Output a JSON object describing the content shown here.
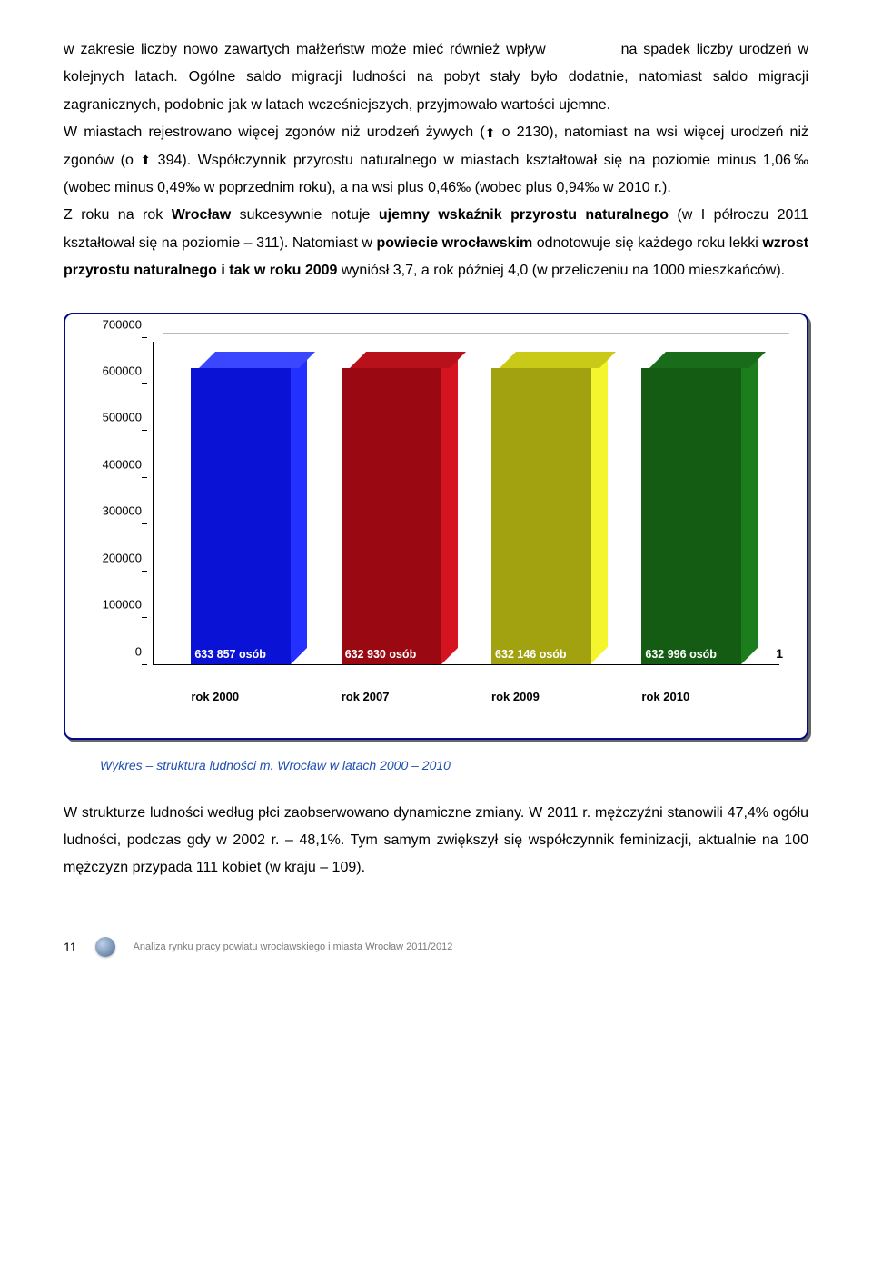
{
  "body_html": "w zakresie liczby nowo zawartych  małżeństw  może  mieć  również wpływ&nbsp;&nbsp;&nbsp;&nbsp;&nbsp;&nbsp;&nbsp;&nbsp;&nbsp;&nbsp;&nbsp;&nbsp;na spadek liczby urodzeń w kolejnych latach. Ogólne saldo migracji ludności na pobyt stały było dodatnie, natomiast saldo migracji zagranicznych, podobnie jak w latach wcześniejszych, przyjmowało wartości ujemne.<br>W miastach rejestrowano więcej zgonów niż urodzeń żywych (<span class='arrow-icon'>⬆</span> o 2130), natomiast na wsi więcej urodzeń niż zgonów (o <span class='arrow-icon'>⬆</span> 394). Współczynnik przyrostu naturalnego w miastach kształtował się na poziomie minus 1,06‰ (wobec minus 0,49‰ w poprzednim roku), a na wsi plus 0,46‰ (wobec plus 0,94‰ w 2010 r.).<br>Z roku na rok <b>Wrocław</b> sukcesywnie notuje <b>ujemny wskaźnik przyrostu naturalnego</b> (w I półroczu 2011 kształtował się na poziomie – 311). Natomiast w <b>powiecie wrocławskim</b> odnotowuje się każdego roku lekki <b>wzrost przyrostu naturalnego i tak w roku 2009</b> wyniósł  3,7, a rok później 4,0 (w przeliczeniu na 1000 mieszkańców).",
  "chart": {
    "type": "bar",
    "ylim": [
      0,
      700000
    ],
    "yticks": [
      0,
      100000,
      200000,
      300000,
      400000,
      500000,
      600000,
      700000
    ],
    "background": "#ffffff",
    "bars": [
      {
        "x_label": "rok 2000",
        "value": 633857,
        "value_label": "633 857 osób",
        "front": "#0a12d6",
        "side": "#2430ff",
        "top": "#3a47ff",
        "left_pct": 6
      },
      {
        "x_label": "rok 2007",
        "value": 632930,
        "value_label": "632 930 osób",
        "front": "#9a0812",
        "side": "#d61320",
        "top": "#b8111c",
        "left_pct": 30
      },
      {
        "x_label": "rok 2009",
        "value": 632146,
        "value_label": "632 146 osób",
        "front": "#a2a210",
        "side": "#f5f52e",
        "top": "#c9c918",
        "left_pct": 54
      },
      {
        "x_label": "rok 2010",
        "value": 632996,
        "value_label": "632 996 osób",
        "front": "#145c14",
        "side": "#1c7d1c",
        "top": "#196c19",
        "left_pct": 78
      }
    ],
    "right_marker": "1"
  },
  "chart_caption": "Wykres – struktura ludności m. Wrocław w latach 2000 – 2010",
  "after_text": "W strukturze ludności według płci zaobserwowano dynamiczne zmiany. W 2011 r. mężczyźni stanowili 47,4% ogółu ludności, podczas gdy w 2002 r. – 48,1%. Tym samym zwiększył się współczynnik feminizacji, aktualnie na 100 mężczyzn przypada 111 kobiet (w kraju – 109).",
  "footer": {
    "page": "11",
    "line": "Analiza rynku pracy powiatu wrocławskiego i miasta Wrocław 2011/2012"
  }
}
